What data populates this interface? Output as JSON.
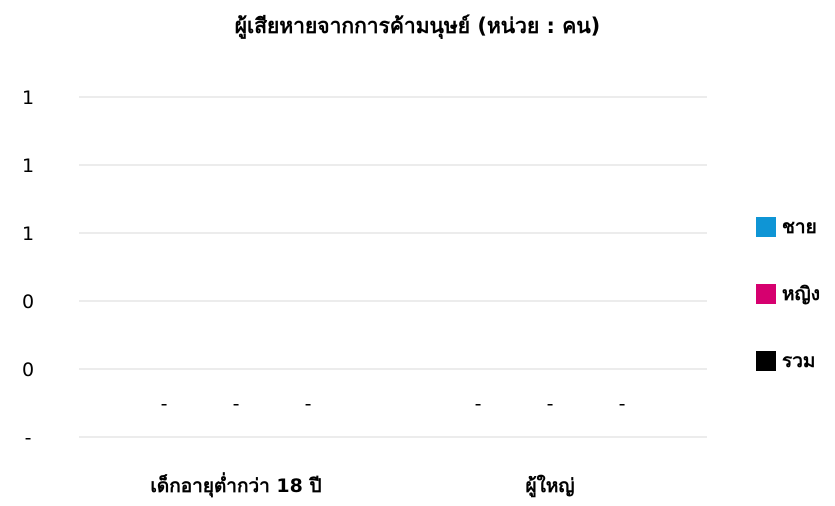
{
  "chart_data": {
    "type": "bar",
    "title": "ผู้เสียหายจากการค้ามนุษย์ (หน่วย : คน)",
    "categories": [
      "เด็กอายุต่ำกว่า 18 ปี",
      "ผู้ใหญ่"
    ],
    "y_tick_labels": [
      "-",
      "0",
      "0",
      "1",
      "1",
      "1"
    ],
    "ylim": [
      0,
      1
    ],
    "grid": true,
    "legend_position": "right",
    "series": [
      {
        "name": "ชาย",
        "color": "#0f95d5",
        "values": [
          0,
          0
        ],
        "data_labels": [
          "-",
          "-"
        ]
      },
      {
        "name": "หญิง",
        "color": "#d6006f",
        "values": [
          0,
          0
        ],
        "data_labels": [
          "-",
          "-"
        ]
      },
      {
        "name": "รวม",
        "color": "#000000",
        "values": [
          0,
          0
        ],
        "data_labels": [
          "-",
          "-"
        ]
      }
    ]
  }
}
